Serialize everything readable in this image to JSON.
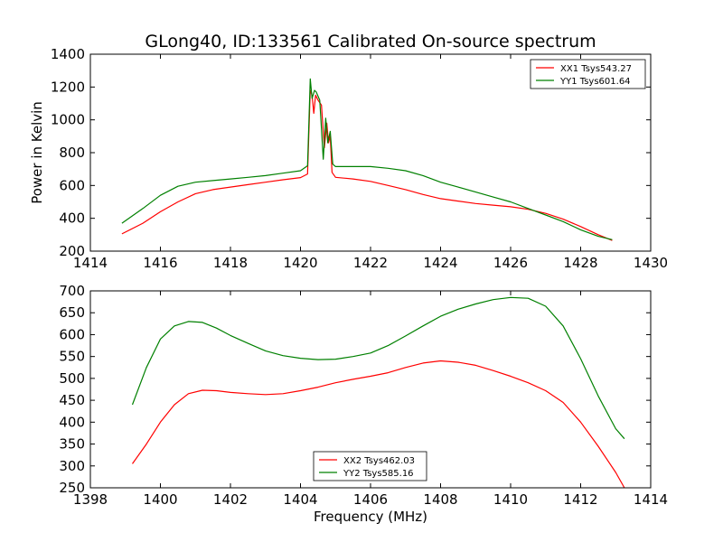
{
  "figure": {
    "title": "GLong40, ID:133561 Calibrated On-source spectrum",
    "xlabel": "Frequency (MHz)"
  },
  "chart_data": [
    {
      "type": "line",
      "title": "GLong40, ID:133561 Calibrated On-source spectrum",
      "xlabel": "",
      "ylabel": "Power in Kelvin",
      "xlim": [
        1414,
        1430
      ],
      "ylim": [
        200,
        1400
      ],
      "xticks": [
        1414,
        1416,
        1418,
        1420,
        1422,
        1424,
        1426,
        1428,
        1430
      ],
      "yticks": [
        200,
        400,
        600,
        800,
        1000,
        1200,
        1400
      ],
      "legend": "top-right",
      "grid": false,
      "series": [
        {
          "name": "XX1 Tsys543.27",
          "color": "#ff0000",
          "x": [
            1414.9,
            1415.5,
            1416.0,
            1416.5,
            1417.0,
            1417.5,
            1418.0,
            1418.5,
            1419.0,
            1419.5,
            1420.0,
            1420.2,
            1420.28,
            1420.33,
            1420.38,
            1420.43,
            1420.5,
            1420.6,
            1420.68,
            1420.75,
            1420.8,
            1420.85,
            1420.9,
            1421.0,
            1421.5,
            1422.0,
            1422.5,
            1423.0,
            1423.5,
            1424.0,
            1424.5,
            1425.0,
            1425.5,
            1426.0,
            1426.5,
            1427.0,
            1427.5,
            1428.0,
            1428.5,
            1428.9
          ],
          "values": [
            305,
            370,
            440,
            500,
            550,
            575,
            590,
            605,
            620,
            635,
            648,
            670,
            1180,
            1150,
            1040,
            1150,
            1120,
            1090,
            830,
            980,
            860,
            900,
            680,
            650,
            640,
            625,
            600,
            575,
            545,
            520,
            505,
            490,
            480,
            470,
            455,
            430,
            395,
            350,
            300,
            265
          ]
        },
        {
          "name": "YY1 Tsys601.64",
          "color": "#008000",
          "x": [
            1414.9,
            1415.5,
            1416.0,
            1416.5,
            1417.0,
            1417.5,
            1418.0,
            1418.5,
            1419.0,
            1419.5,
            1420.0,
            1420.2,
            1420.28,
            1420.33,
            1420.4,
            1420.45,
            1420.55,
            1420.65,
            1420.72,
            1420.78,
            1420.85,
            1420.92,
            1421.0,
            1421.5,
            1422.0,
            1422.5,
            1423.0,
            1423.5,
            1424.0,
            1424.5,
            1425.0,
            1425.5,
            1426.0,
            1426.5,
            1427.0,
            1427.5,
            1428.0,
            1428.5,
            1428.9
          ],
          "values": [
            370,
            460,
            540,
            595,
            620,
            630,
            640,
            650,
            660,
            675,
            690,
            720,
            1250,
            1130,
            1180,
            1170,
            1120,
            760,
            1010,
            860,
            930,
            730,
            715,
            715,
            715,
            705,
            690,
            660,
            620,
            590,
            560,
            530,
            500,
            460,
            420,
            380,
            330,
            290,
            270
          ]
        }
      ]
    },
    {
      "type": "line",
      "xlabel": "Frequency (MHz)",
      "ylabel": "",
      "xlim": [
        1398,
        1414
      ],
      "ylim": [
        250,
        700
      ],
      "xticks": [
        1398,
        1400,
        1402,
        1404,
        1406,
        1408,
        1410,
        1412,
        1414
      ],
      "yticks": [
        250,
        300,
        350,
        400,
        450,
        500,
        550,
        600,
        650,
        700
      ],
      "legend": "bottom-center",
      "grid": false,
      "series": [
        {
          "name": "XX2 Tsys462.03",
          "color": "#ff0000",
          "x": [
            1399.2,
            1399.6,
            1400.0,
            1400.4,
            1400.8,
            1401.2,
            1401.6,
            1402.0,
            1402.5,
            1403.0,
            1403.5,
            1404.0,
            1404.5,
            1405.0,
            1405.5,
            1406.0,
            1406.5,
            1407.0,
            1407.5,
            1408.0,
            1408.5,
            1409.0,
            1409.5,
            1410.0,
            1410.5,
            1411.0,
            1411.5,
            1412.0,
            1412.5,
            1413.0,
            1413.25
          ],
          "values": [
            305,
            350,
            400,
            440,
            465,
            473,
            472,
            468,
            465,
            463,
            465,
            472,
            480,
            490,
            498,
            505,
            513,
            525,
            535,
            540,
            537,
            530,
            518,
            505,
            490,
            472,
            445,
            400,
            345,
            285,
            250
          ]
        },
        {
          "name": "YY2 Tsys585.16",
          "color": "#008000",
          "x": [
            1399.2,
            1399.6,
            1400.0,
            1400.4,
            1400.8,
            1401.2,
            1401.6,
            1402.0,
            1402.5,
            1403.0,
            1403.5,
            1404.0,
            1404.5,
            1405.0,
            1405.5,
            1406.0,
            1406.5,
            1407.0,
            1407.5,
            1408.0,
            1408.5,
            1409.0,
            1409.5,
            1410.0,
            1410.5,
            1411.0,
            1411.5,
            1412.0,
            1412.5,
            1413.0,
            1413.25
          ],
          "values": [
            440,
            525,
            590,
            620,
            630,
            628,
            615,
            598,
            580,
            563,
            552,
            546,
            543,
            544,
            550,
            558,
            575,
            597,
            620,
            642,
            658,
            670,
            680,
            685,
            683,
            665,
            620,
            545,
            460,
            385,
            362
          ]
        }
      ]
    }
  ]
}
